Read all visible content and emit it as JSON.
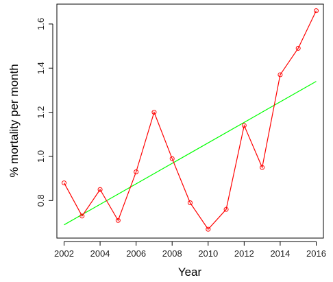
{
  "chart_data": {
    "type": "line",
    "title": "",
    "xlabel": "Year",
    "ylabel": "% mortality per month",
    "xlim": [
      2001.6,
      2016.4
    ],
    "ylim": [
      0.63,
      1.69
    ],
    "x_ticks": [
      2002,
      2004,
      2006,
      2008,
      2010,
      2012,
      2014,
      2016
    ],
    "y_ticks": [
      0.8,
      1.0,
      1.2,
      1.4,
      1.6
    ],
    "x_tick_labels": [
      "2002",
      "2004",
      "2006",
      "2008",
      "2010",
      "2012",
      "2014",
      "2016"
    ],
    "y_tick_labels": [
      "0.8",
      "1.0",
      "1.2",
      "1.4",
      "1.6"
    ],
    "grid": false,
    "series": [
      {
        "color": "#ff0000",
        "marker": "open-circle",
        "x": [
          2002,
          2003,
          2004,
          2005,
          2006,
          2007,
          2008,
          2009,
          2010,
          2011,
          2012,
          2013,
          2014,
          2015,
          2016
        ],
        "y": [
          0.88,
          0.73,
          0.85,
          0.71,
          0.93,
          1.2,
          0.99,
          0.79,
          0.67,
          0.76,
          1.14,
          0.95,
          1.37,
          1.49,
          1.66
        ]
      }
    ],
    "trend_line": {
      "color": "#00ff00",
      "x": [
        2002,
        2016
      ],
      "y": [
        0.69,
        1.34
      ]
    }
  }
}
